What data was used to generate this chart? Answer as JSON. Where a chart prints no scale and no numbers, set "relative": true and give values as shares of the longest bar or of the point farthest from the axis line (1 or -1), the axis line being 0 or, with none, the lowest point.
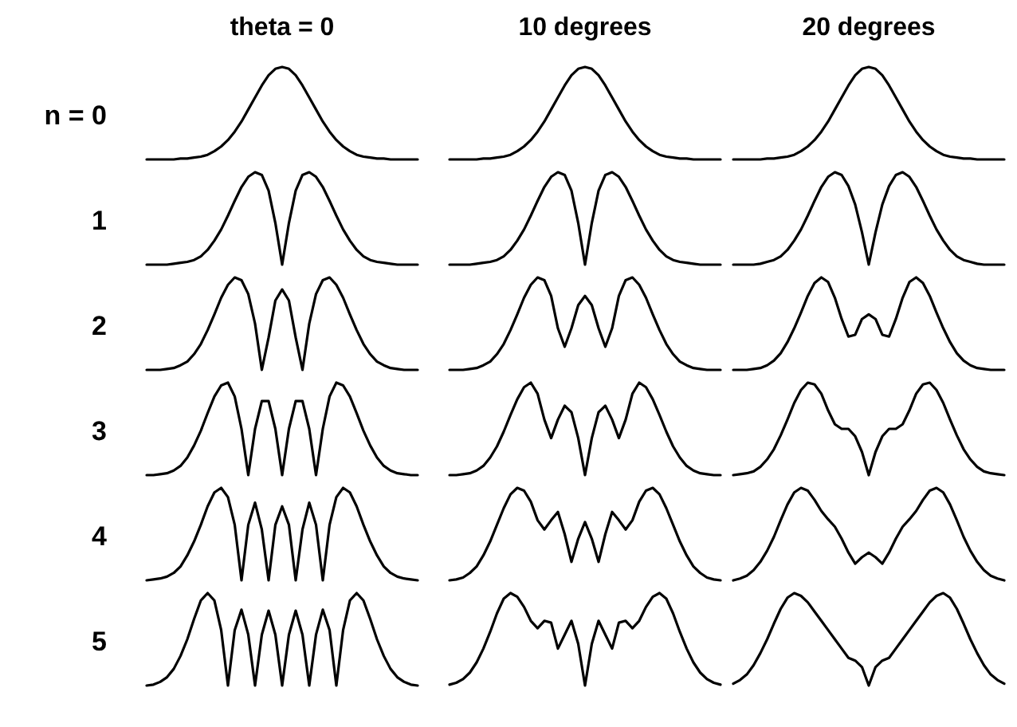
{
  "chart_data": [
    {
      "type": "line",
      "relative": true,
      "title": "theta = 0",
      "ylabel": "n = 0",
      "categories": [
        null,
        null,
        null,
        null,
        null,
        null,
        null,
        null,
        null,
        null,
        null,
        null,
        null,
        null,
        null,
        null,
        null,
        null,
        null,
        null,
        null,
        null,
        null,
        null,
        null,
        null,
        null,
        null,
        null,
        null,
        null,
        null,
        null,
        null,
        null,
        null,
        null,
        null,
        null,
        null,
        null
      ],
      "series": [
        {
          "color": "#000000",
          "values": [
            0,
            0,
            0,
            0,
            0,
            0.01,
            0.01,
            0.02,
            0.03,
            0.05,
            0.09,
            0.14,
            0.21,
            0.3,
            0.41,
            0.54,
            0.67,
            0.8,
            0.91,
            0.98,
            1,
            0.98,
            0.91,
            0.8,
            0.67,
            0.54,
            0.41,
            0.3,
            0.21,
            0.14,
            0.09,
            0.05,
            0.03,
            0.02,
            0.01,
            0.01,
            0,
            0,
            0,
            0,
            0
          ]
        }
      ]
    },
    {
      "type": "line",
      "relative": true,
      "title": "10 degrees",
      "categories": [
        null,
        null,
        null,
        null,
        null,
        null,
        null,
        null,
        null,
        null,
        null,
        null,
        null,
        null,
        null,
        null,
        null,
        null,
        null,
        null,
        null,
        null,
        null,
        null,
        null,
        null,
        null,
        null,
        null,
        null,
        null,
        null,
        null,
        null,
        null,
        null,
        null,
        null,
        null,
        null,
        null
      ],
      "series": [
        {
          "color": "#000000",
          "values": [
            0,
            0,
            0,
            0,
            0,
            0.01,
            0.01,
            0.02,
            0.03,
            0.05,
            0.09,
            0.14,
            0.21,
            0.3,
            0.41,
            0.54,
            0.67,
            0.8,
            0.91,
            0.98,
            1,
            0.98,
            0.91,
            0.8,
            0.67,
            0.54,
            0.41,
            0.3,
            0.21,
            0.14,
            0.09,
            0.05,
            0.03,
            0.02,
            0.01,
            0.01,
            0,
            0,
            0,
            0,
            0
          ]
        }
      ]
    },
    {
      "type": "line",
      "relative": true,
      "title": "20 degrees",
      "categories": [
        null,
        null,
        null,
        null,
        null,
        null,
        null,
        null,
        null,
        null,
        null,
        null,
        null,
        null,
        null,
        null,
        null,
        null,
        null,
        null,
        null,
        null,
        null,
        null,
        null,
        null,
        null,
        null,
        null,
        null,
        null,
        null,
        null,
        null,
        null,
        null,
        null,
        null,
        null,
        null,
        null
      ],
      "series": [
        {
          "color": "#000000",
          "values": [
            0,
            0,
            0,
            0,
            0,
            0.01,
            0.01,
            0.02,
            0.03,
            0.05,
            0.09,
            0.14,
            0.21,
            0.3,
            0.41,
            0.54,
            0.67,
            0.8,
            0.91,
            0.98,
            1,
            0.98,
            0.91,
            0.8,
            0.67,
            0.54,
            0.41,
            0.3,
            0.21,
            0.14,
            0.09,
            0.05,
            0.03,
            0.02,
            0.01,
            0.01,
            0,
            0,
            0,
            0,
            0
          ]
        }
      ]
    },
    {
      "type": "line",
      "relative": true,
      "ylabel": "1",
      "categories": [
        null,
        null,
        null,
        null,
        null,
        null,
        null,
        null,
        null,
        null,
        null,
        null,
        null,
        null,
        null,
        null,
        null,
        null,
        null,
        null,
        null,
        null,
        null,
        null,
        null,
        null,
        null,
        null,
        null,
        null,
        null,
        null,
        null,
        null,
        null,
        null,
        null,
        null,
        null,
        null,
        null
      ],
      "series": [
        {
          "color": "#000000",
          "values": [
            0,
            0,
            0,
            0,
            0.01,
            0.02,
            0.03,
            0.05,
            0.09,
            0.16,
            0.26,
            0.38,
            0.53,
            0.69,
            0.84,
            0.95,
            1,
            0.97,
            0.8,
            0.45,
            0,
            0.45,
            0.8,
            0.97,
            1,
            0.95,
            0.84,
            0.69,
            0.53,
            0.38,
            0.26,
            0.16,
            0.09,
            0.05,
            0.03,
            0.02,
            0.01,
            0,
            0,
            0,
            0
          ]
        }
      ]
    },
    {
      "type": "line",
      "relative": true,
      "categories": [
        null,
        null,
        null,
        null,
        null,
        null,
        null,
        null,
        null,
        null,
        null,
        null,
        null,
        null,
        null,
        null,
        null,
        null,
        null,
        null,
        null,
        null,
        null,
        null,
        null,
        null,
        null,
        null,
        null,
        null,
        null,
        null,
        null,
        null,
        null,
        null,
        null,
        null,
        null,
        null,
        null
      ],
      "series": [
        {
          "color": "#000000",
          "values": [
            0,
            0,
            0,
            0,
            0.01,
            0.02,
            0.03,
            0.05,
            0.09,
            0.16,
            0.26,
            0.38,
            0.53,
            0.69,
            0.84,
            0.95,
            1,
            0.97,
            0.8,
            0.45,
            0,
            0.45,
            0.8,
            0.97,
            1,
            0.95,
            0.84,
            0.69,
            0.53,
            0.38,
            0.26,
            0.16,
            0.09,
            0.05,
            0.03,
            0.02,
            0.01,
            0,
            0,
            0,
            0
          ]
        }
      ]
    },
    {
      "type": "line",
      "relative": true,
      "categories": [
        null,
        null,
        null,
        null,
        null,
        null,
        null,
        null,
        null,
        null,
        null,
        null,
        null,
        null,
        null,
        null,
        null,
        null,
        null,
        null,
        null,
        null,
        null,
        null,
        null,
        null,
        null,
        null,
        null,
        null,
        null,
        null,
        null,
        null,
        null,
        null,
        null,
        null,
        null,
        null,
        null
      ],
      "series": [
        {
          "color": "#000000",
          "values": [
            0,
            0,
            0,
            0,
            0.01,
            0.03,
            0.05,
            0.09,
            0.16,
            0.26,
            0.38,
            0.53,
            0.69,
            0.84,
            0.95,
            1,
            0.97,
            0.85,
            0.65,
            0.35,
            0,
            0.35,
            0.65,
            0.85,
            0.97,
            1,
            0.95,
            0.84,
            0.69,
            0.53,
            0.38,
            0.26,
            0.16,
            0.09,
            0.05,
            0.03,
            0.01,
            0,
            0,
            0,
            0
          ]
        }
      ]
    },
    {
      "type": "line",
      "relative": true,
      "ylabel": "2",
      "categories": [
        null,
        null,
        null,
        null,
        null,
        null,
        null,
        null,
        null,
        null,
        null,
        null,
        null,
        null,
        null,
        null,
        null,
        null,
        null,
        null,
        null,
        null,
        null,
        null,
        null,
        null,
        null,
        null,
        null,
        null,
        null,
        null,
        null,
        null,
        null,
        null,
        null,
        null,
        null,
        null,
        null
      ],
      "series": [
        {
          "color": "#000000",
          "values": [
            0,
            0,
            0,
            0.01,
            0.02,
            0.05,
            0.09,
            0.17,
            0.28,
            0.43,
            0.6,
            0.78,
            0.92,
            1,
            0.97,
            0.82,
            0.5,
            0,
            0.35,
            0.75,
            0.87,
            0.75,
            0.35,
            0,
            0.5,
            0.82,
            0.97,
            1,
            0.92,
            0.78,
            0.6,
            0.43,
            0.28,
            0.17,
            0.09,
            0.05,
            0.02,
            0.01,
            0,
            0,
            0
          ]
        }
      ]
    },
    {
      "type": "line",
      "relative": true,
      "categories": [
        null,
        null,
        null,
        null,
        null,
        null,
        null,
        null,
        null,
        null,
        null,
        null,
        null,
        null,
        null,
        null,
        null,
        null,
        null,
        null,
        null,
        null,
        null,
        null,
        null,
        null,
        null,
        null,
        null,
        null,
        null,
        null,
        null,
        null,
        null,
        null,
        null,
        null,
        null,
        null,
        null
      ],
      "series": [
        {
          "color": "#000000",
          "values": [
            0,
            0,
            0,
            0.01,
            0.02,
            0.05,
            0.09,
            0.17,
            0.28,
            0.43,
            0.6,
            0.78,
            0.92,
            1,
            0.97,
            0.8,
            0.45,
            0.25,
            0.45,
            0.7,
            0.8,
            0.7,
            0.45,
            0.25,
            0.45,
            0.8,
            0.97,
            1,
            0.92,
            0.78,
            0.6,
            0.43,
            0.28,
            0.17,
            0.09,
            0.05,
            0.02,
            0.01,
            0,
            0,
            0
          ]
        }
      ]
    },
    {
      "type": "line",
      "relative": true,
      "categories": [
        null,
        null,
        null,
        null,
        null,
        null,
        null,
        null,
        null,
        null,
        null,
        null,
        null,
        null,
        null,
        null,
        null,
        null,
        null,
        null,
        null,
        null,
        null,
        null,
        null,
        null,
        null,
        null,
        null,
        null,
        null,
        null,
        null,
        null,
        null,
        null,
        null,
        null,
        null,
        null,
        null
      ],
      "series": [
        {
          "color": "#000000",
          "values": [
            0,
            0,
            0,
            0.01,
            0.02,
            0.05,
            0.1,
            0.18,
            0.3,
            0.45,
            0.62,
            0.8,
            0.94,
            1,
            0.95,
            0.78,
            0.55,
            0.36,
            0.38,
            0.55,
            0.6,
            0.55,
            0.38,
            0.36,
            0.55,
            0.78,
            0.95,
            1,
            0.94,
            0.8,
            0.62,
            0.45,
            0.3,
            0.18,
            0.1,
            0.05,
            0.02,
            0.01,
            0,
            0,
            0
          ]
        }
      ]
    },
    {
      "type": "line",
      "relative": true,
      "ylabel": "3",
      "categories": [
        null,
        null,
        null,
        null,
        null,
        null,
        null,
        null,
        null,
        null,
        null,
        null,
        null,
        null,
        null,
        null,
        null,
        null,
        null,
        null,
        null,
        null,
        null,
        null,
        null,
        null,
        null,
        null,
        null,
        null,
        null,
        null,
        null,
        null,
        null,
        null,
        null,
        null,
        null,
        null,
        null
      ],
      "series": [
        {
          "color": "#000000",
          "values": [
            0,
            0,
            0.01,
            0.02,
            0.05,
            0.1,
            0.19,
            0.32,
            0.48,
            0.67,
            0.85,
            0.97,
            1,
            0.85,
            0.5,
            0,
            0.5,
            0.8,
            0.8,
            0.5,
            0,
            0.5,
            0.8,
            0.8,
            0.5,
            0,
            0.5,
            0.85,
            1,
            0.97,
            0.85,
            0.67,
            0.48,
            0.32,
            0.19,
            0.1,
            0.05,
            0.02,
            0.01,
            0,
            0
          ]
        }
      ]
    },
    {
      "type": "line",
      "relative": true,
      "categories": [
        null,
        null,
        null,
        null,
        null,
        null,
        null,
        null,
        null,
        null,
        null,
        null,
        null,
        null,
        null,
        null,
        null,
        null,
        null,
        null,
        null,
        null,
        null,
        null,
        null,
        null,
        null,
        null,
        null,
        null,
        null,
        null,
        null,
        null,
        null,
        null,
        null,
        null,
        null,
        null,
        null
      ],
      "series": [
        {
          "color": "#000000",
          "values": [
            0,
            0,
            0.01,
            0.02,
            0.05,
            0.1,
            0.19,
            0.31,
            0.47,
            0.65,
            0.82,
            0.95,
            1,
            0.88,
            0.6,
            0.4,
            0.6,
            0.75,
            0.68,
            0.4,
            0,
            0.4,
            0.68,
            0.75,
            0.6,
            0.4,
            0.6,
            0.88,
            1,
            0.95,
            0.82,
            0.65,
            0.47,
            0.31,
            0.19,
            0.1,
            0.05,
            0.02,
            0.01,
            0,
            0
          ]
        }
      ]
    },
    {
      "type": "line",
      "relative": true,
      "categories": [
        null,
        null,
        null,
        null,
        null,
        null,
        null,
        null,
        null,
        null,
        null,
        null,
        null,
        null,
        null,
        null,
        null,
        null,
        null,
        null,
        null,
        null,
        null,
        null,
        null,
        null,
        null,
        null,
        null,
        null,
        null,
        null,
        null,
        null,
        null,
        null,
        null,
        null,
        null,
        null,
        null
      ],
      "series": [
        {
          "color": "#000000",
          "values": [
            0,
            0.01,
            0.02,
            0.04,
            0.09,
            0.17,
            0.28,
            0.43,
            0.6,
            0.78,
            0.92,
            1,
            0.98,
            0.88,
            0.7,
            0.55,
            0.5,
            0.5,
            0.42,
            0.25,
            0,
            0.25,
            0.42,
            0.5,
            0.5,
            0.55,
            0.7,
            0.88,
            0.98,
            1,
            0.92,
            0.78,
            0.6,
            0.43,
            0.28,
            0.17,
            0.09,
            0.04,
            0.02,
            0.01,
            0
          ]
        }
      ]
    },
    {
      "type": "line",
      "relative": true,
      "ylabel": "4",
      "categories": [
        null,
        null,
        null,
        null,
        null,
        null,
        null,
        null,
        null,
        null,
        null,
        null,
        null,
        null,
        null,
        null,
        null,
        null,
        null,
        null,
        null,
        null,
        null,
        null,
        null,
        null,
        null,
        null,
        null,
        null,
        null,
        null,
        null,
        null,
        null,
        null,
        null,
        null,
        null,
        null,
        null
      ],
      "series": [
        {
          "color": "#000000",
          "values": [
            0,
            0.01,
            0.02,
            0.04,
            0.08,
            0.15,
            0.27,
            0.42,
            0.6,
            0.8,
            0.95,
            1,
            0.9,
            0.6,
            0,
            0.6,
            0.84,
            0.55,
            0,
            0.6,
            0.8,
            0.6,
            0,
            0.55,
            0.84,
            0.6,
            0,
            0.6,
            0.9,
            1,
            0.95,
            0.8,
            0.6,
            0.42,
            0.27,
            0.15,
            0.08,
            0.04,
            0.02,
            0.01,
            0
          ]
        }
      ]
    },
    {
      "type": "line",
      "relative": true,
      "categories": [
        null,
        null,
        null,
        null,
        null,
        null,
        null,
        null,
        null,
        null,
        null,
        null,
        null,
        null,
        null,
        null,
        null,
        null,
        null,
        null,
        null,
        null,
        null,
        null,
        null,
        null,
        null,
        null,
        null,
        null,
        null,
        null,
        null,
        null,
        null,
        null,
        null,
        null,
        null,
        null,
        null
      ],
      "series": [
        {
          "color": "#000000",
          "values": [
            0,
            0.01,
            0.03,
            0.08,
            0.15,
            0.27,
            0.42,
            0.6,
            0.78,
            0.93,
            1,
            0.97,
            0.85,
            0.65,
            0.55,
            0.65,
            0.74,
            0.5,
            0.2,
            0.45,
            0.63,
            0.45,
            0.2,
            0.5,
            0.74,
            0.65,
            0.55,
            0.65,
            0.85,
            0.97,
            1,
            0.93,
            0.78,
            0.6,
            0.42,
            0.27,
            0.15,
            0.08,
            0.03,
            0.01,
            0
          ]
        }
      ]
    },
    {
      "type": "line",
      "relative": true,
      "categories": [
        null,
        null,
        null,
        null,
        null,
        null,
        null,
        null,
        null,
        null,
        null,
        null,
        null,
        null,
        null,
        null,
        null,
        null,
        null,
        null,
        null,
        null,
        null,
        null,
        null,
        null,
        null,
        null,
        null,
        null,
        null,
        null,
        null,
        null,
        null,
        null,
        null,
        null,
        null,
        null,
        null
      ],
      "series": [
        {
          "color": "#000000",
          "values": [
            0,
            0.02,
            0.05,
            0.11,
            0.2,
            0.32,
            0.47,
            0.65,
            0.82,
            0.95,
            1,
            0.97,
            0.87,
            0.75,
            0.66,
            0.58,
            0.45,
            0.3,
            0.18,
            0.25,
            0.3,
            0.25,
            0.18,
            0.3,
            0.45,
            0.58,
            0.66,
            0.75,
            0.87,
            0.97,
            1,
            0.95,
            0.82,
            0.65,
            0.47,
            0.32,
            0.2,
            0.11,
            0.05,
            0.02,
            0
          ]
        }
      ]
    },
    {
      "type": "line",
      "relative": true,
      "ylabel": "5",
      "categories": [
        null,
        null,
        null,
        null,
        null,
        null,
        null,
        null,
        null,
        null,
        null,
        null,
        null,
        null,
        null,
        null,
        null,
        null,
        null,
        null,
        null,
        null,
        null,
        null,
        null,
        null,
        null,
        null,
        null,
        null,
        null,
        null,
        null,
        null,
        null,
        null,
        null,
        null,
        null,
        null,
        null
      ],
      "series": [
        {
          "color": "#000000",
          "values": [
            0,
            0.01,
            0.04,
            0.09,
            0.18,
            0.32,
            0.5,
            0.72,
            0.92,
            1,
            0.92,
            0.6,
            0,
            0.6,
            0.82,
            0.55,
            0,
            0.55,
            0.81,
            0.55,
            0,
            0.55,
            0.81,
            0.55,
            0,
            0.55,
            0.82,
            0.6,
            0,
            0.6,
            0.92,
            1,
            0.92,
            0.72,
            0.5,
            0.32,
            0.18,
            0.09,
            0.04,
            0.01,
            0
          ]
        }
      ]
    },
    {
      "type": "line",
      "relative": true,
      "categories": [
        null,
        null,
        null,
        null,
        null,
        null,
        null,
        null,
        null,
        null,
        null,
        null,
        null,
        null,
        null,
        null,
        null,
        null,
        null,
        null,
        null,
        null,
        null,
        null,
        null,
        null,
        null,
        null,
        null,
        null,
        null,
        null,
        null,
        null,
        null,
        null,
        null,
        null,
        null,
        null,
        null
      ],
      "series": [
        {
          "color": "#000000",
          "values": [
            0.01,
            0.03,
            0.07,
            0.14,
            0.25,
            0.4,
            0.58,
            0.78,
            0.94,
            1,
            0.96,
            0.85,
            0.7,
            0.62,
            0.7,
            0.68,
            0.4,
            0.55,
            0.7,
            0.45,
            0,
            0.45,
            0.7,
            0.55,
            0.4,
            0.68,
            0.7,
            0.62,
            0.7,
            0.85,
            0.96,
            1,
            0.94,
            0.78,
            0.58,
            0.4,
            0.25,
            0.14,
            0.07,
            0.03,
            0.01
          ]
        }
      ]
    },
    {
      "type": "line",
      "relative": true,
      "categories": [
        null,
        null,
        null,
        null,
        null,
        null,
        null,
        null,
        null,
        null,
        null,
        null,
        null,
        null,
        null,
        null,
        null,
        null,
        null,
        null,
        null,
        null,
        null,
        null,
        null,
        null,
        null,
        null,
        null,
        null,
        null,
        null,
        null,
        null,
        null,
        null,
        null,
        null,
        null,
        null,
        null
      ],
      "series": [
        {
          "color": "#000000",
          "values": [
            0.02,
            0.06,
            0.12,
            0.22,
            0.35,
            0.5,
            0.67,
            0.83,
            0.95,
            1,
            0.97,
            0.9,
            0.8,
            0.7,
            0.6,
            0.5,
            0.4,
            0.3,
            0.27,
            0.2,
            0,
            0.2,
            0.27,
            0.3,
            0.4,
            0.5,
            0.6,
            0.7,
            0.8,
            0.9,
            0.97,
            1,
            0.95,
            0.83,
            0.67,
            0.5,
            0.35,
            0.22,
            0.12,
            0.06,
            0.02
          ]
        }
      ]
    }
  ]
}
